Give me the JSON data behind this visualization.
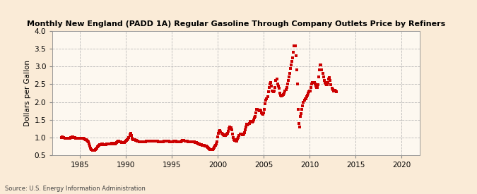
{
  "title": "Monthly New England (PADD 1A) Regular Gasoline Through Company Outlets Price by Refiners",
  "ylabel": "Dollars per Gallon",
  "source": "Source: U.S. Energy Information Administration",
  "bg_color": "#faebd7",
  "plot_bg_color": "#fdf8f0",
  "marker_color": "#cc0000",
  "xlim": [
    1982,
    2022
  ],
  "ylim": [
    0.5,
    4.0
  ],
  "xticks": [
    1985,
    1990,
    1995,
    2000,
    2005,
    2010,
    2015,
    2020
  ],
  "yticks": [
    0.5,
    1.0,
    1.5,
    2.0,
    2.5,
    3.0,
    3.5,
    4.0
  ],
  "data": [
    [
      1983.0,
      1.0
    ],
    [
      1983.08,
      1.01
    ],
    [
      1983.17,
      1.0
    ],
    [
      1983.25,
      0.99
    ],
    [
      1983.33,
      0.98
    ],
    [
      1983.42,
      0.97
    ],
    [
      1983.5,
      0.97
    ],
    [
      1983.58,
      0.97
    ],
    [
      1983.67,
      0.97
    ],
    [
      1983.75,
      0.97
    ],
    [
      1983.83,
      0.97
    ],
    [
      1983.92,
      0.98
    ],
    [
      1984.0,
      0.99
    ],
    [
      1984.08,
      1.0
    ],
    [
      1984.17,
      1.01
    ],
    [
      1984.25,
      1.01
    ],
    [
      1984.33,
      1.0
    ],
    [
      1984.42,
      0.99
    ],
    [
      1984.5,
      0.98
    ],
    [
      1984.58,
      0.97
    ],
    [
      1984.67,
      0.97
    ],
    [
      1984.75,
      0.97
    ],
    [
      1984.83,
      0.97
    ],
    [
      1984.92,
      0.97
    ],
    [
      1985.0,
      0.97
    ],
    [
      1985.08,
      0.97
    ],
    [
      1985.17,
      0.97
    ],
    [
      1985.25,
      0.97
    ],
    [
      1985.33,
      0.97
    ],
    [
      1985.42,
      0.96
    ],
    [
      1985.5,
      0.95
    ],
    [
      1985.58,
      0.94
    ],
    [
      1985.67,
      0.93
    ],
    [
      1985.75,
      0.91
    ],
    [
      1985.83,
      0.89
    ],
    [
      1985.92,
      0.87
    ],
    [
      1986.0,
      0.82
    ],
    [
      1986.08,
      0.76
    ],
    [
      1986.17,
      0.7
    ],
    [
      1986.25,
      0.66
    ],
    [
      1986.33,
      0.64
    ],
    [
      1986.42,
      0.63
    ],
    [
      1986.5,
      0.63
    ],
    [
      1986.58,
      0.64
    ],
    [
      1986.67,
      0.65
    ],
    [
      1986.75,
      0.67
    ],
    [
      1986.83,
      0.7
    ],
    [
      1986.92,
      0.74
    ],
    [
      1987.0,
      0.76
    ],
    [
      1987.08,
      0.78
    ],
    [
      1987.17,
      0.79
    ],
    [
      1987.25,
      0.8
    ],
    [
      1987.33,
      0.81
    ],
    [
      1987.42,
      0.81
    ],
    [
      1987.5,
      0.8
    ],
    [
      1987.58,
      0.8
    ],
    [
      1987.67,
      0.8
    ],
    [
      1987.75,
      0.8
    ],
    [
      1987.83,
      0.8
    ],
    [
      1987.92,
      0.81
    ],
    [
      1988.0,
      0.82
    ],
    [
      1988.08,
      0.82
    ],
    [
      1988.17,
      0.82
    ],
    [
      1988.25,
      0.82
    ],
    [
      1988.33,
      0.82
    ],
    [
      1988.42,
      0.83
    ],
    [
      1988.5,
      0.83
    ],
    [
      1988.58,
      0.83
    ],
    [
      1988.67,
      0.82
    ],
    [
      1988.75,
      0.82
    ],
    [
      1988.83,
      0.82
    ],
    [
      1988.92,
      0.83
    ],
    [
      1989.0,
      0.85
    ],
    [
      1989.08,
      0.87
    ],
    [
      1989.17,
      0.89
    ],
    [
      1989.25,
      0.89
    ],
    [
      1989.33,
      0.88
    ],
    [
      1989.42,
      0.87
    ],
    [
      1989.5,
      0.86
    ],
    [
      1989.58,
      0.85
    ],
    [
      1989.67,
      0.85
    ],
    [
      1989.75,
      0.85
    ],
    [
      1989.83,
      0.86
    ],
    [
      1989.92,
      0.87
    ],
    [
      1990.0,
      0.9
    ],
    [
      1990.08,
      0.92
    ],
    [
      1990.17,
      0.94
    ],
    [
      1990.25,
      0.96
    ],
    [
      1990.33,
      1.0
    ],
    [
      1990.42,
      1.08
    ],
    [
      1990.5,
      1.11
    ],
    [
      1990.58,
      1.05
    ],
    [
      1990.67,
      0.97
    ],
    [
      1990.75,
      0.94
    ],
    [
      1990.83,
      0.93
    ],
    [
      1990.92,
      0.93
    ],
    [
      1991.0,
      0.93
    ],
    [
      1991.08,
      0.92
    ],
    [
      1991.17,
      0.91
    ],
    [
      1991.25,
      0.9
    ],
    [
      1991.33,
      0.89
    ],
    [
      1991.42,
      0.88
    ],
    [
      1991.5,
      0.87
    ],
    [
      1991.58,
      0.87
    ],
    [
      1991.67,
      0.87
    ],
    [
      1991.75,
      0.87
    ],
    [
      1991.83,
      0.87
    ],
    [
      1991.92,
      0.88
    ],
    [
      1992.0,
      0.88
    ],
    [
      1992.08,
      0.88
    ],
    [
      1992.17,
      0.88
    ],
    [
      1992.25,
      0.89
    ],
    [
      1992.33,
      0.9
    ],
    [
      1992.42,
      0.9
    ],
    [
      1992.5,
      0.9
    ],
    [
      1992.58,
      0.89
    ],
    [
      1992.67,
      0.89
    ],
    [
      1992.75,
      0.89
    ],
    [
      1992.83,
      0.89
    ],
    [
      1992.92,
      0.89
    ],
    [
      1993.0,
      0.89
    ],
    [
      1993.08,
      0.89
    ],
    [
      1993.17,
      0.89
    ],
    [
      1993.25,
      0.89
    ],
    [
      1993.33,
      0.89
    ],
    [
      1993.42,
      0.89
    ],
    [
      1993.5,
      0.88
    ],
    [
      1993.58,
      0.88
    ],
    [
      1993.67,
      0.88
    ],
    [
      1993.75,
      0.88
    ],
    [
      1993.83,
      0.88
    ],
    [
      1993.92,
      0.88
    ],
    [
      1994.0,
      0.88
    ],
    [
      1994.08,
      0.88
    ],
    [
      1994.17,
      0.89
    ],
    [
      1994.25,
      0.9
    ],
    [
      1994.33,
      0.9
    ],
    [
      1994.42,
      0.9
    ],
    [
      1994.5,
      0.9
    ],
    [
      1994.58,
      0.9
    ],
    [
      1994.67,
      0.89
    ],
    [
      1994.75,
      0.88
    ],
    [
      1994.83,
      0.87
    ],
    [
      1994.92,
      0.87
    ],
    [
      1995.0,
      0.87
    ],
    [
      1995.08,
      0.87
    ],
    [
      1995.17,
      0.88
    ],
    [
      1995.25,
      0.89
    ],
    [
      1995.33,
      0.89
    ],
    [
      1995.42,
      0.89
    ],
    [
      1995.5,
      0.88
    ],
    [
      1995.58,
      0.88
    ],
    [
      1995.67,
      0.87
    ],
    [
      1995.75,
      0.87
    ],
    [
      1995.83,
      0.87
    ],
    [
      1995.92,
      0.87
    ],
    [
      1996.0,
      0.88
    ],
    [
      1996.08,
      0.9
    ],
    [
      1996.17,
      0.92
    ],
    [
      1996.25,
      0.92
    ],
    [
      1996.33,
      0.91
    ],
    [
      1996.42,
      0.9
    ],
    [
      1996.5,
      0.89
    ],
    [
      1996.58,
      0.89
    ],
    [
      1996.67,
      0.89
    ],
    [
      1996.75,
      0.88
    ],
    [
      1996.83,
      0.87
    ],
    [
      1996.92,
      0.87
    ],
    [
      1997.0,
      0.87
    ],
    [
      1997.08,
      0.87
    ],
    [
      1997.17,
      0.87
    ],
    [
      1997.25,
      0.87
    ],
    [
      1997.33,
      0.87
    ],
    [
      1997.42,
      0.87
    ],
    [
      1997.5,
      0.86
    ],
    [
      1997.58,
      0.86
    ],
    [
      1997.67,
      0.85
    ],
    [
      1997.75,
      0.84
    ],
    [
      1997.83,
      0.83
    ],
    [
      1997.92,
      0.82
    ],
    [
      1998.0,
      0.81
    ],
    [
      1998.08,
      0.8
    ],
    [
      1998.17,
      0.79
    ],
    [
      1998.25,
      0.79
    ],
    [
      1998.33,
      0.78
    ],
    [
      1998.42,
      0.77
    ],
    [
      1998.5,
      0.77
    ],
    [
      1998.58,
      0.76
    ],
    [
      1998.67,
      0.76
    ],
    [
      1998.75,
      0.75
    ],
    [
      1998.83,
      0.74
    ],
    [
      1998.92,
      0.72
    ],
    [
      1999.0,
      0.69
    ],
    [
      1999.08,
      0.67
    ],
    [
      1999.17,
      0.66
    ],
    [
      1999.25,
      0.65
    ],
    [
      1999.33,
      0.65
    ],
    [
      1999.42,
      0.66
    ],
    [
      1999.5,
      0.68
    ],
    [
      1999.58,
      0.72
    ],
    [
      1999.67,
      0.75
    ],
    [
      1999.75,
      0.78
    ],
    [
      1999.83,
      0.82
    ],
    [
      1999.92,
      0.87
    ],
    [
      2000.0,
      1.02
    ],
    [
      2000.08,
      1.12
    ],
    [
      2000.17,
      1.18
    ],
    [
      2000.25,
      1.2
    ],
    [
      2000.33,
      1.15
    ],
    [
      2000.42,
      1.12
    ],
    [
      2000.5,
      1.1
    ],
    [
      2000.58,
      1.08
    ],
    [
      2000.67,
      1.05
    ],
    [
      2000.75,
      1.05
    ],
    [
      2000.83,
      1.06
    ],
    [
      2000.92,
      1.07
    ],
    [
      2001.0,
      1.1
    ],
    [
      2001.08,
      1.12
    ],
    [
      2001.17,
      1.18
    ],
    [
      2001.25,
      1.25
    ],
    [
      2001.33,
      1.3
    ],
    [
      2001.42,
      1.28
    ],
    [
      2001.5,
      1.22
    ],
    [
      2001.58,
      1.1
    ],
    [
      2001.67,
      0.99
    ],
    [
      2001.75,
      0.94
    ],
    [
      2001.83,
      0.92
    ],
    [
      2001.92,
      0.93
    ],
    [
      2002.0,
      0.9
    ],
    [
      2002.08,
      0.9
    ],
    [
      2002.17,
      0.95
    ],
    [
      2002.25,
      1.0
    ],
    [
      2002.33,
      1.05
    ],
    [
      2002.42,
      1.1
    ],
    [
      2002.5,
      1.1
    ],
    [
      2002.58,
      1.1
    ],
    [
      2002.67,
      1.08
    ],
    [
      2002.75,
      1.08
    ],
    [
      2002.83,
      1.1
    ],
    [
      2002.92,
      1.13
    ],
    [
      2003.0,
      1.22
    ],
    [
      2003.08,
      1.3
    ],
    [
      2003.17,
      1.38
    ],
    [
      2003.25,
      1.35
    ],
    [
      2003.33,
      1.38
    ],
    [
      2003.42,
      1.4
    ],
    [
      2003.5,
      1.45
    ],
    [
      2003.58,
      1.45
    ],
    [
      2003.67,
      1.44
    ],
    [
      2003.75,
      1.43
    ],
    [
      2003.83,
      1.45
    ],
    [
      2003.92,
      1.5
    ],
    [
      2004.0,
      1.55
    ],
    [
      2004.08,
      1.6
    ],
    [
      2004.17,
      1.7
    ],
    [
      2004.25,
      1.8
    ],
    [
      2004.33,
      1.8
    ],
    [
      2004.42,
      1.78
    ],
    [
      2004.5,
      1.75
    ],
    [
      2004.58,
      1.78
    ],
    [
      2004.67,
      1.75
    ],
    [
      2004.75,
      1.7
    ],
    [
      2004.83,
      1.68
    ],
    [
      2004.92,
      1.65
    ],
    [
      2005.0,
      1.7
    ],
    [
      2005.08,
      1.8
    ],
    [
      2005.17,
      1.95
    ],
    [
      2005.25,
      2.05
    ],
    [
      2005.33,
      2.1
    ],
    [
      2005.42,
      2.15
    ],
    [
      2005.5,
      2.28
    ],
    [
      2005.58,
      2.4
    ],
    [
      2005.67,
      2.5
    ],
    [
      2005.75,
      2.55
    ],
    [
      2005.83,
      2.45
    ],
    [
      2005.92,
      2.3
    ],
    [
      2006.0,
      2.3
    ],
    [
      2006.08,
      2.28
    ],
    [
      2006.17,
      2.3
    ],
    [
      2006.25,
      2.4
    ],
    [
      2006.33,
      2.6
    ],
    [
      2006.42,
      2.65
    ],
    [
      2006.5,
      2.5
    ],
    [
      2006.58,
      2.45
    ],
    [
      2006.67,
      2.38
    ],
    [
      2006.75,
      2.25
    ],
    [
      2006.83,
      2.2
    ],
    [
      2006.92,
      2.18
    ],
    [
      2007.0,
      2.2
    ],
    [
      2007.08,
      2.2
    ],
    [
      2007.17,
      2.22
    ],
    [
      2007.25,
      2.25
    ],
    [
      2007.33,
      2.3
    ],
    [
      2007.42,
      2.35
    ],
    [
      2007.5,
      2.4
    ],
    [
      2007.58,
      2.5
    ],
    [
      2007.67,
      2.6
    ],
    [
      2007.75,
      2.7
    ],
    [
      2007.83,
      2.8
    ],
    [
      2007.92,
      2.95
    ],
    [
      2008.0,
      3.05
    ],
    [
      2008.08,
      3.15
    ],
    [
      2008.17,
      3.25
    ],
    [
      2008.25,
      3.4
    ],
    [
      2008.33,
      3.58
    ],
    [
      2008.42,
      3.58
    ],
    [
      2008.5,
      3.3
    ],
    [
      2008.58,
      2.9
    ],
    [
      2008.67,
      2.5
    ],
    [
      2008.75,
      1.8
    ],
    [
      2008.83,
      1.4
    ],
    [
      2008.92,
      1.3
    ],
    [
      2009.0,
      1.6
    ],
    [
      2009.08,
      1.68
    ],
    [
      2009.17,
      1.8
    ],
    [
      2009.25,
      1.9
    ],
    [
      2009.33,
      2.0
    ],
    [
      2009.42,
      2.05
    ],
    [
      2009.5,
      2.1
    ],
    [
      2009.58,
      2.1
    ],
    [
      2009.67,
      2.15
    ],
    [
      2009.75,
      2.2
    ],
    [
      2009.83,
      2.25
    ],
    [
      2009.92,
      2.28
    ],
    [
      2010.0,
      2.3
    ],
    [
      2010.08,
      2.3
    ],
    [
      2010.17,
      2.4
    ],
    [
      2010.25,
      2.5
    ],
    [
      2010.33,
      2.55
    ],
    [
      2010.42,
      2.55
    ],
    [
      2010.5,
      2.55
    ],
    [
      2010.58,
      2.5
    ],
    [
      2010.67,
      2.45
    ],
    [
      2010.75,
      2.4
    ],
    [
      2010.83,
      2.4
    ],
    [
      2010.92,
      2.48
    ],
    [
      2011.0,
      2.7
    ],
    [
      2011.08,
      2.9
    ],
    [
      2011.17,
      3.05
    ],
    [
      2011.25,
      3.05
    ],
    [
      2011.33,
      2.9
    ],
    [
      2011.42,
      2.8
    ],
    [
      2011.5,
      2.7
    ],
    [
      2011.58,
      2.6
    ],
    [
      2011.67,
      2.55
    ],
    [
      2011.75,
      2.5
    ],
    [
      2011.83,
      2.48
    ],
    [
      2011.92,
      2.48
    ],
    [
      2012.0,
      2.55
    ],
    [
      2012.08,
      2.65
    ],
    [
      2012.17,
      2.68
    ],
    [
      2012.25,
      2.6
    ],
    [
      2012.33,
      2.48
    ],
    [
      2012.42,
      2.38
    ],
    [
      2012.5,
      2.35
    ],
    [
      2012.58,
      2.3
    ],
    [
      2012.67,
      2.3
    ],
    [
      2012.75,
      2.32
    ],
    [
      2012.83,
      2.3
    ],
    [
      2012.92,
      2.28
    ]
  ]
}
